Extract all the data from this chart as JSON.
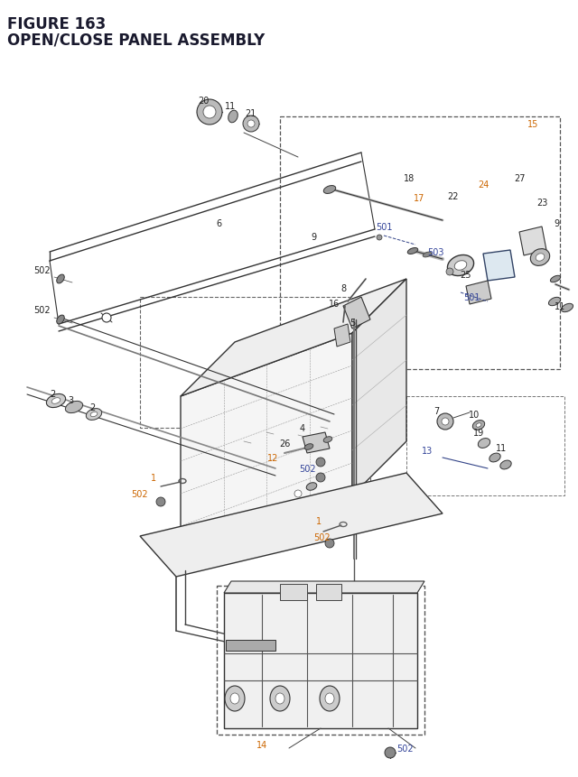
{
  "title_line1": "FIGURE 163",
  "title_line2": "OPEN/CLOSE PANEL ASSEMBLY",
  "title_color": "#1a1a2e",
  "title_fontsize": 11,
  "bg_color": "#ffffff",
  "fig_width": 6.4,
  "fig_height": 8.62
}
